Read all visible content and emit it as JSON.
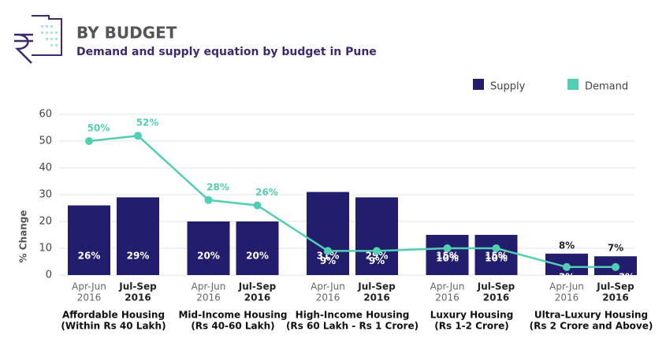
{
  "chart_data": {
    "type": "bar",
    "title": "BY BUDGET",
    "subtitle": "Demand and supply equation by budget in Pune",
    "y_label": "% Change",
    "categories": [
      [
        "Apr-Jun",
        "2016"
      ],
      [
        "Jul-Sep",
        "2016"
      ],
      [
        "Apr-Jun",
        "2016"
      ],
      [
        "Jul-Sep",
        "2016"
      ],
      [
        "Apr-Jun",
        "2016"
      ],
      [
        "Jul-Sep",
        "2016"
      ],
      [
        "Apr-Jun",
        "2016"
      ],
      [
        "Jul-Sep",
        "2016"
      ],
      [
        "Apr-Jun",
        "2016"
      ],
      [
        "Jul-Sep",
        "2016"
      ]
    ],
    "groups": [
      [
        "Affordable Housing",
        "(Within Rs 40 Lakh)"
      ],
      [
        "Mid-Income Housing",
        "(Rs 40-60 Lakh)"
      ],
      [
        "High-Income Housing",
        "(Rs 60 Lakh - Rs 1 Crore)"
      ],
      [
        "Luxury Housing",
        "(Rs 1-2 Crore)"
      ],
      [
        "Ultra-Luxury Housing",
        "(Rs 2 Crore and Above)"
      ]
    ],
    "series": [
      {
        "name": "Supply",
        "type": "bar",
        "color": "#221d6c",
        "values": [
          26,
          29,
          20,
          20,
          31,
          29,
          15,
          15,
          8,
          7
        ],
        "value_labels": [
          "26%",
          "29%",
          "20%",
          "20%",
          "31%",
          "29%",
          "15%",
          "15%",
          "8%",
          "7%"
        ]
      },
      {
        "name": "Demand",
        "type": "line",
        "color": "#52cfb3",
        "values": [
          50,
          52,
          28,
          26,
          9,
          9,
          10,
          10,
          3,
          3
        ],
        "value_labels": [
          "50%",
          "52%",
          "28%",
          "26%",
          "9%",
          "9%",
          "10%",
          "10%",
          "3%",
          "3%"
        ]
      }
    ],
    "ylim": [
      0,
      60
    ],
    "yticks": [
      0,
      10,
      20,
      30,
      40,
      50,
      60
    ],
    "grid": true,
    "legend": "top-right"
  }
}
